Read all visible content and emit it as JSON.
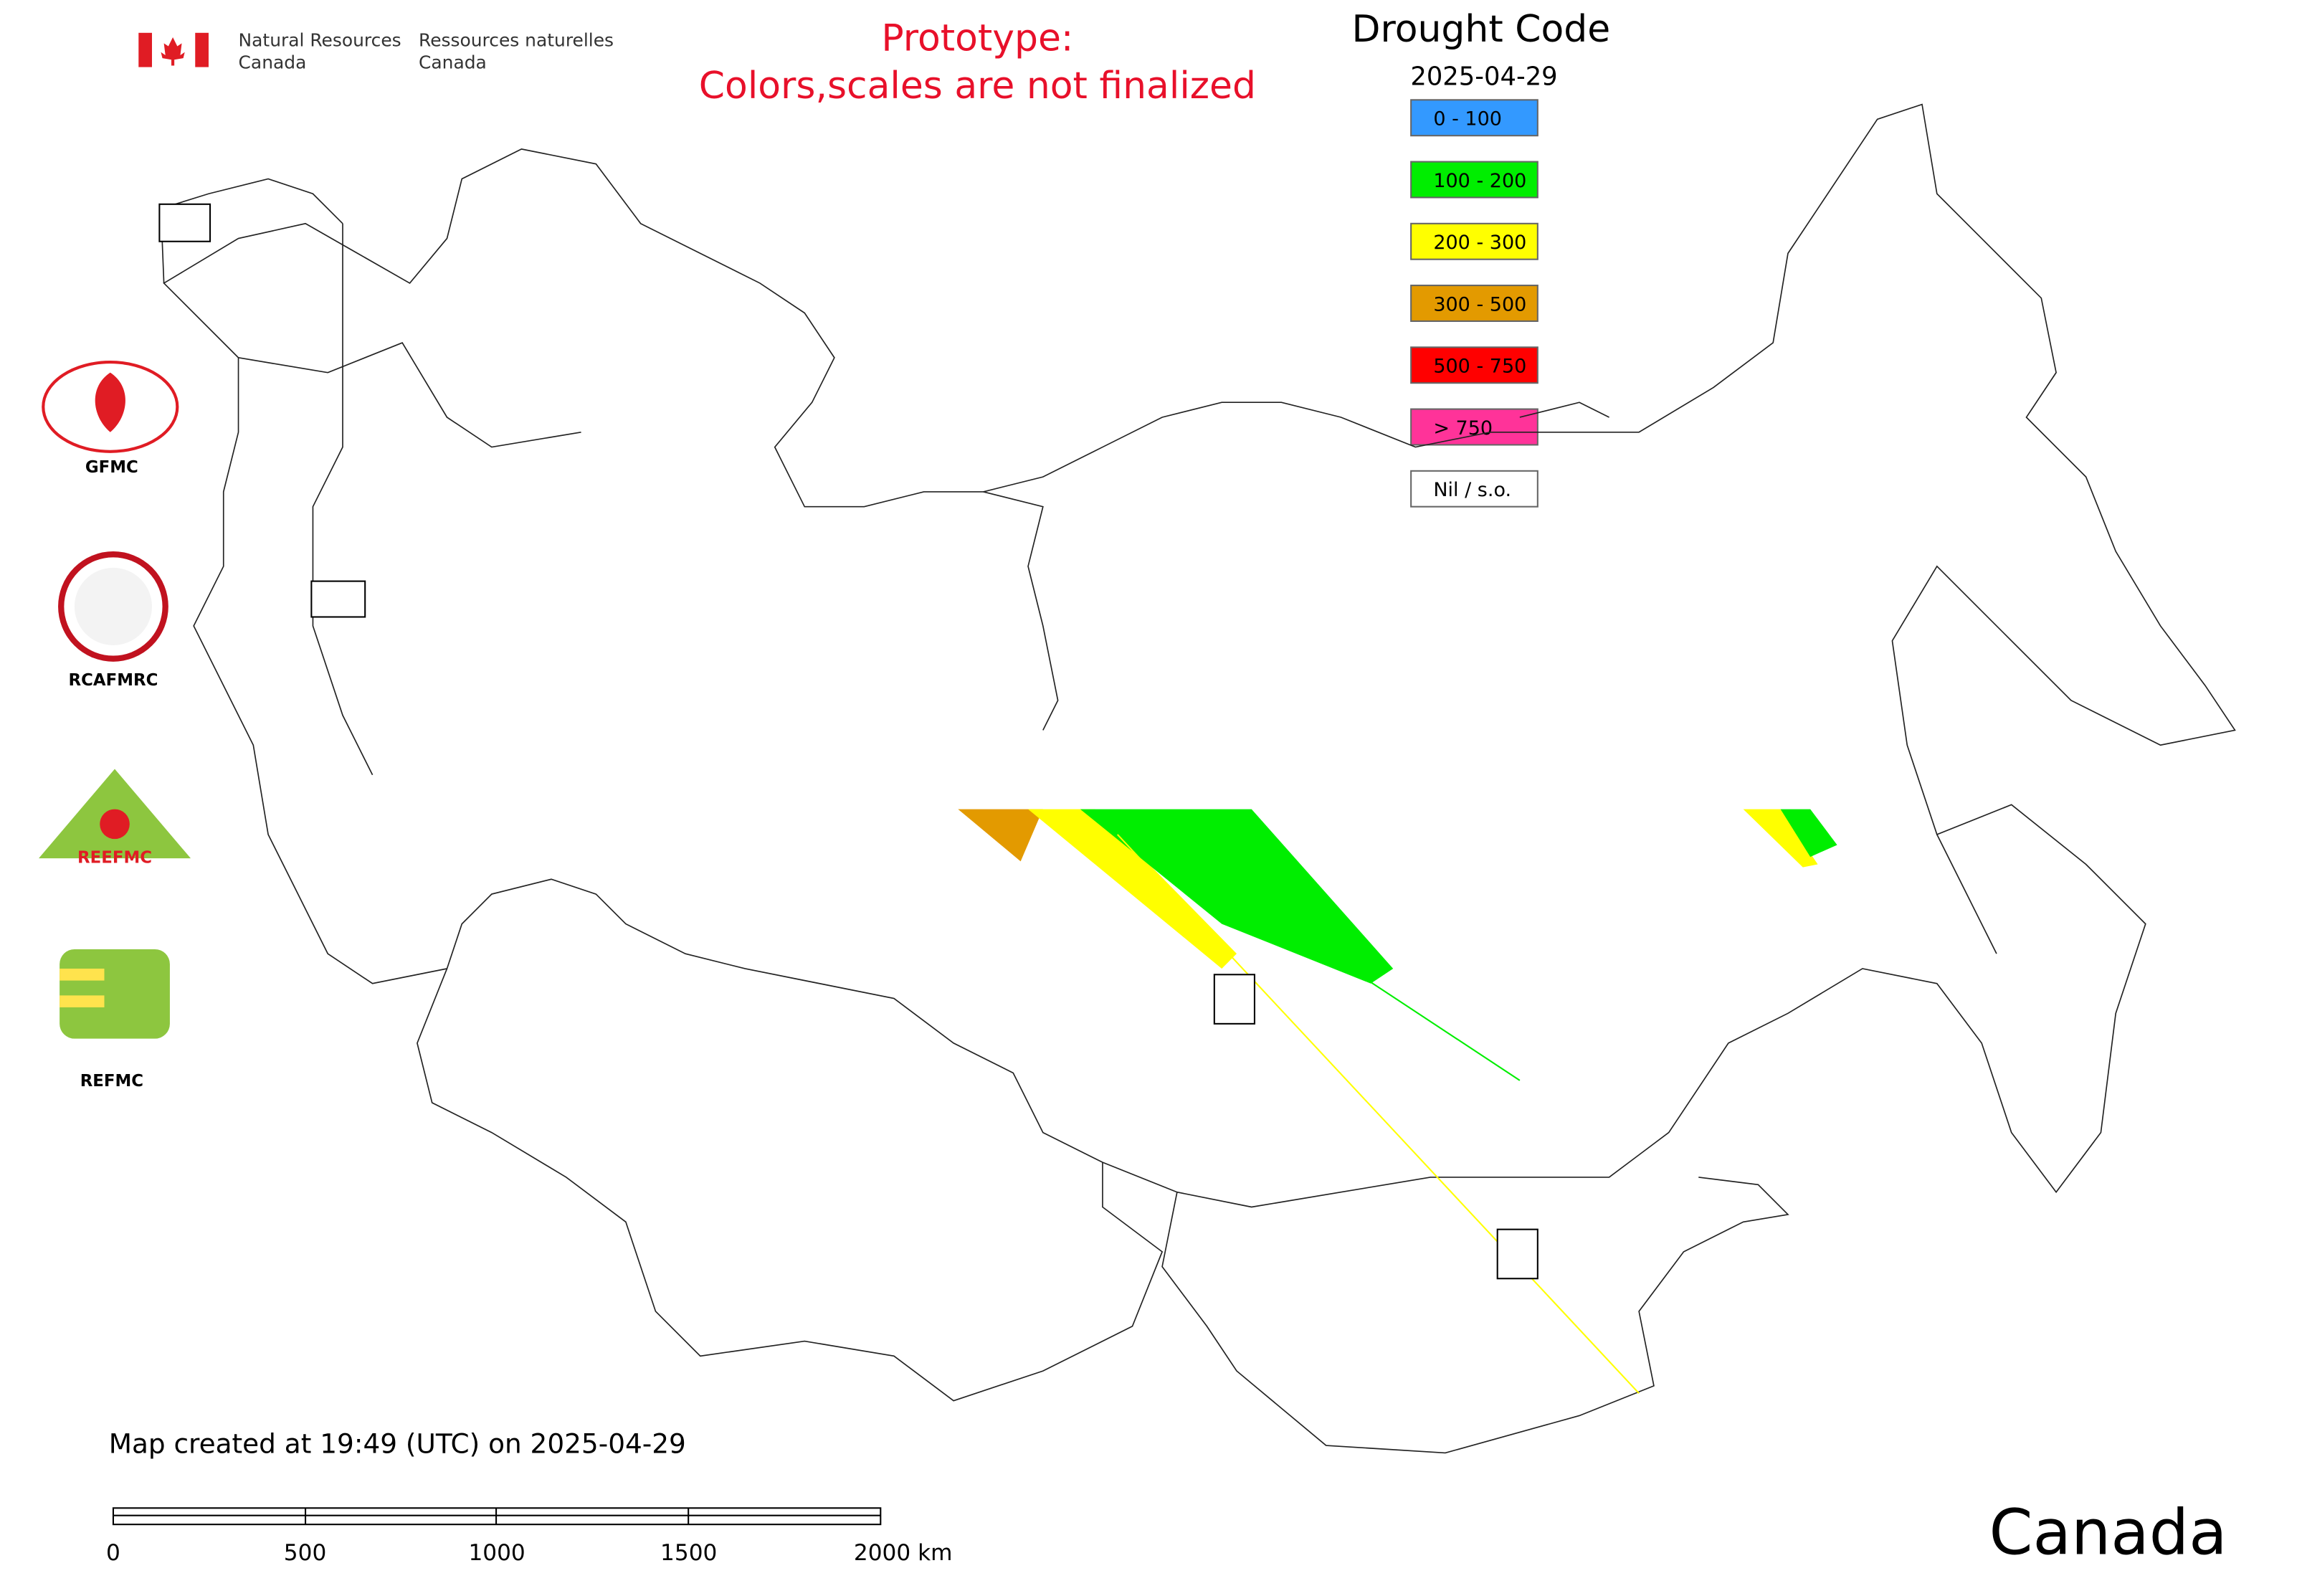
{
  "header": {
    "department_en": [
      "Natural Resources",
      "Canada"
    ],
    "department_fr": [
      "Ressources naturelles",
      "Canada"
    ],
    "notice": [
      "Prototype:",
      "Colors,scales are not finalized"
    ]
  },
  "legend": {
    "title": "Drought Code",
    "date": "2025-04-29",
    "items": [
      {
        "label": "0 - 100",
        "color": "#3399ff"
      },
      {
        "label": "100 - 200",
        "color": "#00ee00"
      },
      {
        "label": "200 - 300",
        "color": "#ffff00"
      },
      {
        "label": "300 - 500",
        "color": "#e39a00"
      },
      {
        "label": "500 - 750",
        "color": "#ff0000"
      },
      {
        "label": "> 750",
        "color": "#ff3399"
      },
      {
        "label": "Nil / s.o.",
        "color": "#ffffff"
      }
    ]
  },
  "logos": [
    "GFMC",
    "RCAFMRC",
    "REEFMC",
    "REFMC"
  ],
  "footer": {
    "created": "Map created at 19:49 (UTC) on 2025-04-29",
    "scale_labels": [
      "0",
      "500",
      "1000",
      "1500",
      "2000 km"
    ],
    "wordmark": "Canada"
  }
}
